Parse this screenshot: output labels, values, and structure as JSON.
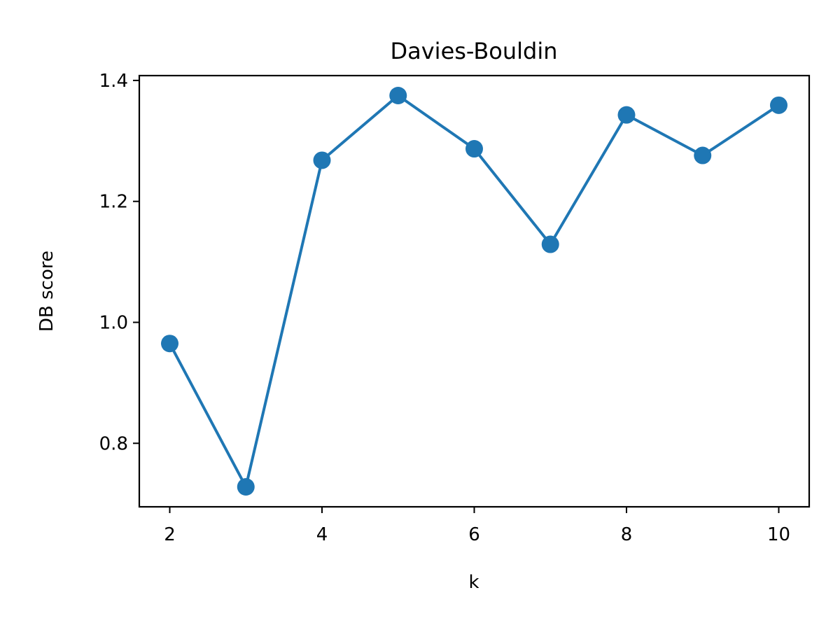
{
  "chart_data": {
    "type": "line",
    "title": "Davies-Bouldin",
    "xlabel": "k",
    "ylabel": "DB score",
    "x": [
      2,
      3,
      4,
      5,
      6,
      7,
      8,
      9,
      10
    ],
    "series": [
      {
        "values": [
          0.965,
          0.728,
          1.268,
          1.375,
          1.287,
          1.129,
          1.343,
          1.276,
          1.359
        ],
        "color": "#1f77b4",
        "marker": "circle"
      }
    ],
    "xlim": [
      1.6,
      10.4
    ],
    "ylim": [
      0.695,
      1.408
    ],
    "x_ticks": [
      "2",
      "4",
      "6",
      "8",
      "10"
    ],
    "y_ticks": [
      "0.8",
      "1.0",
      "1.2",
      "1.4"
    ],
    "grid": false,
    "legend": "none"
  }
}
